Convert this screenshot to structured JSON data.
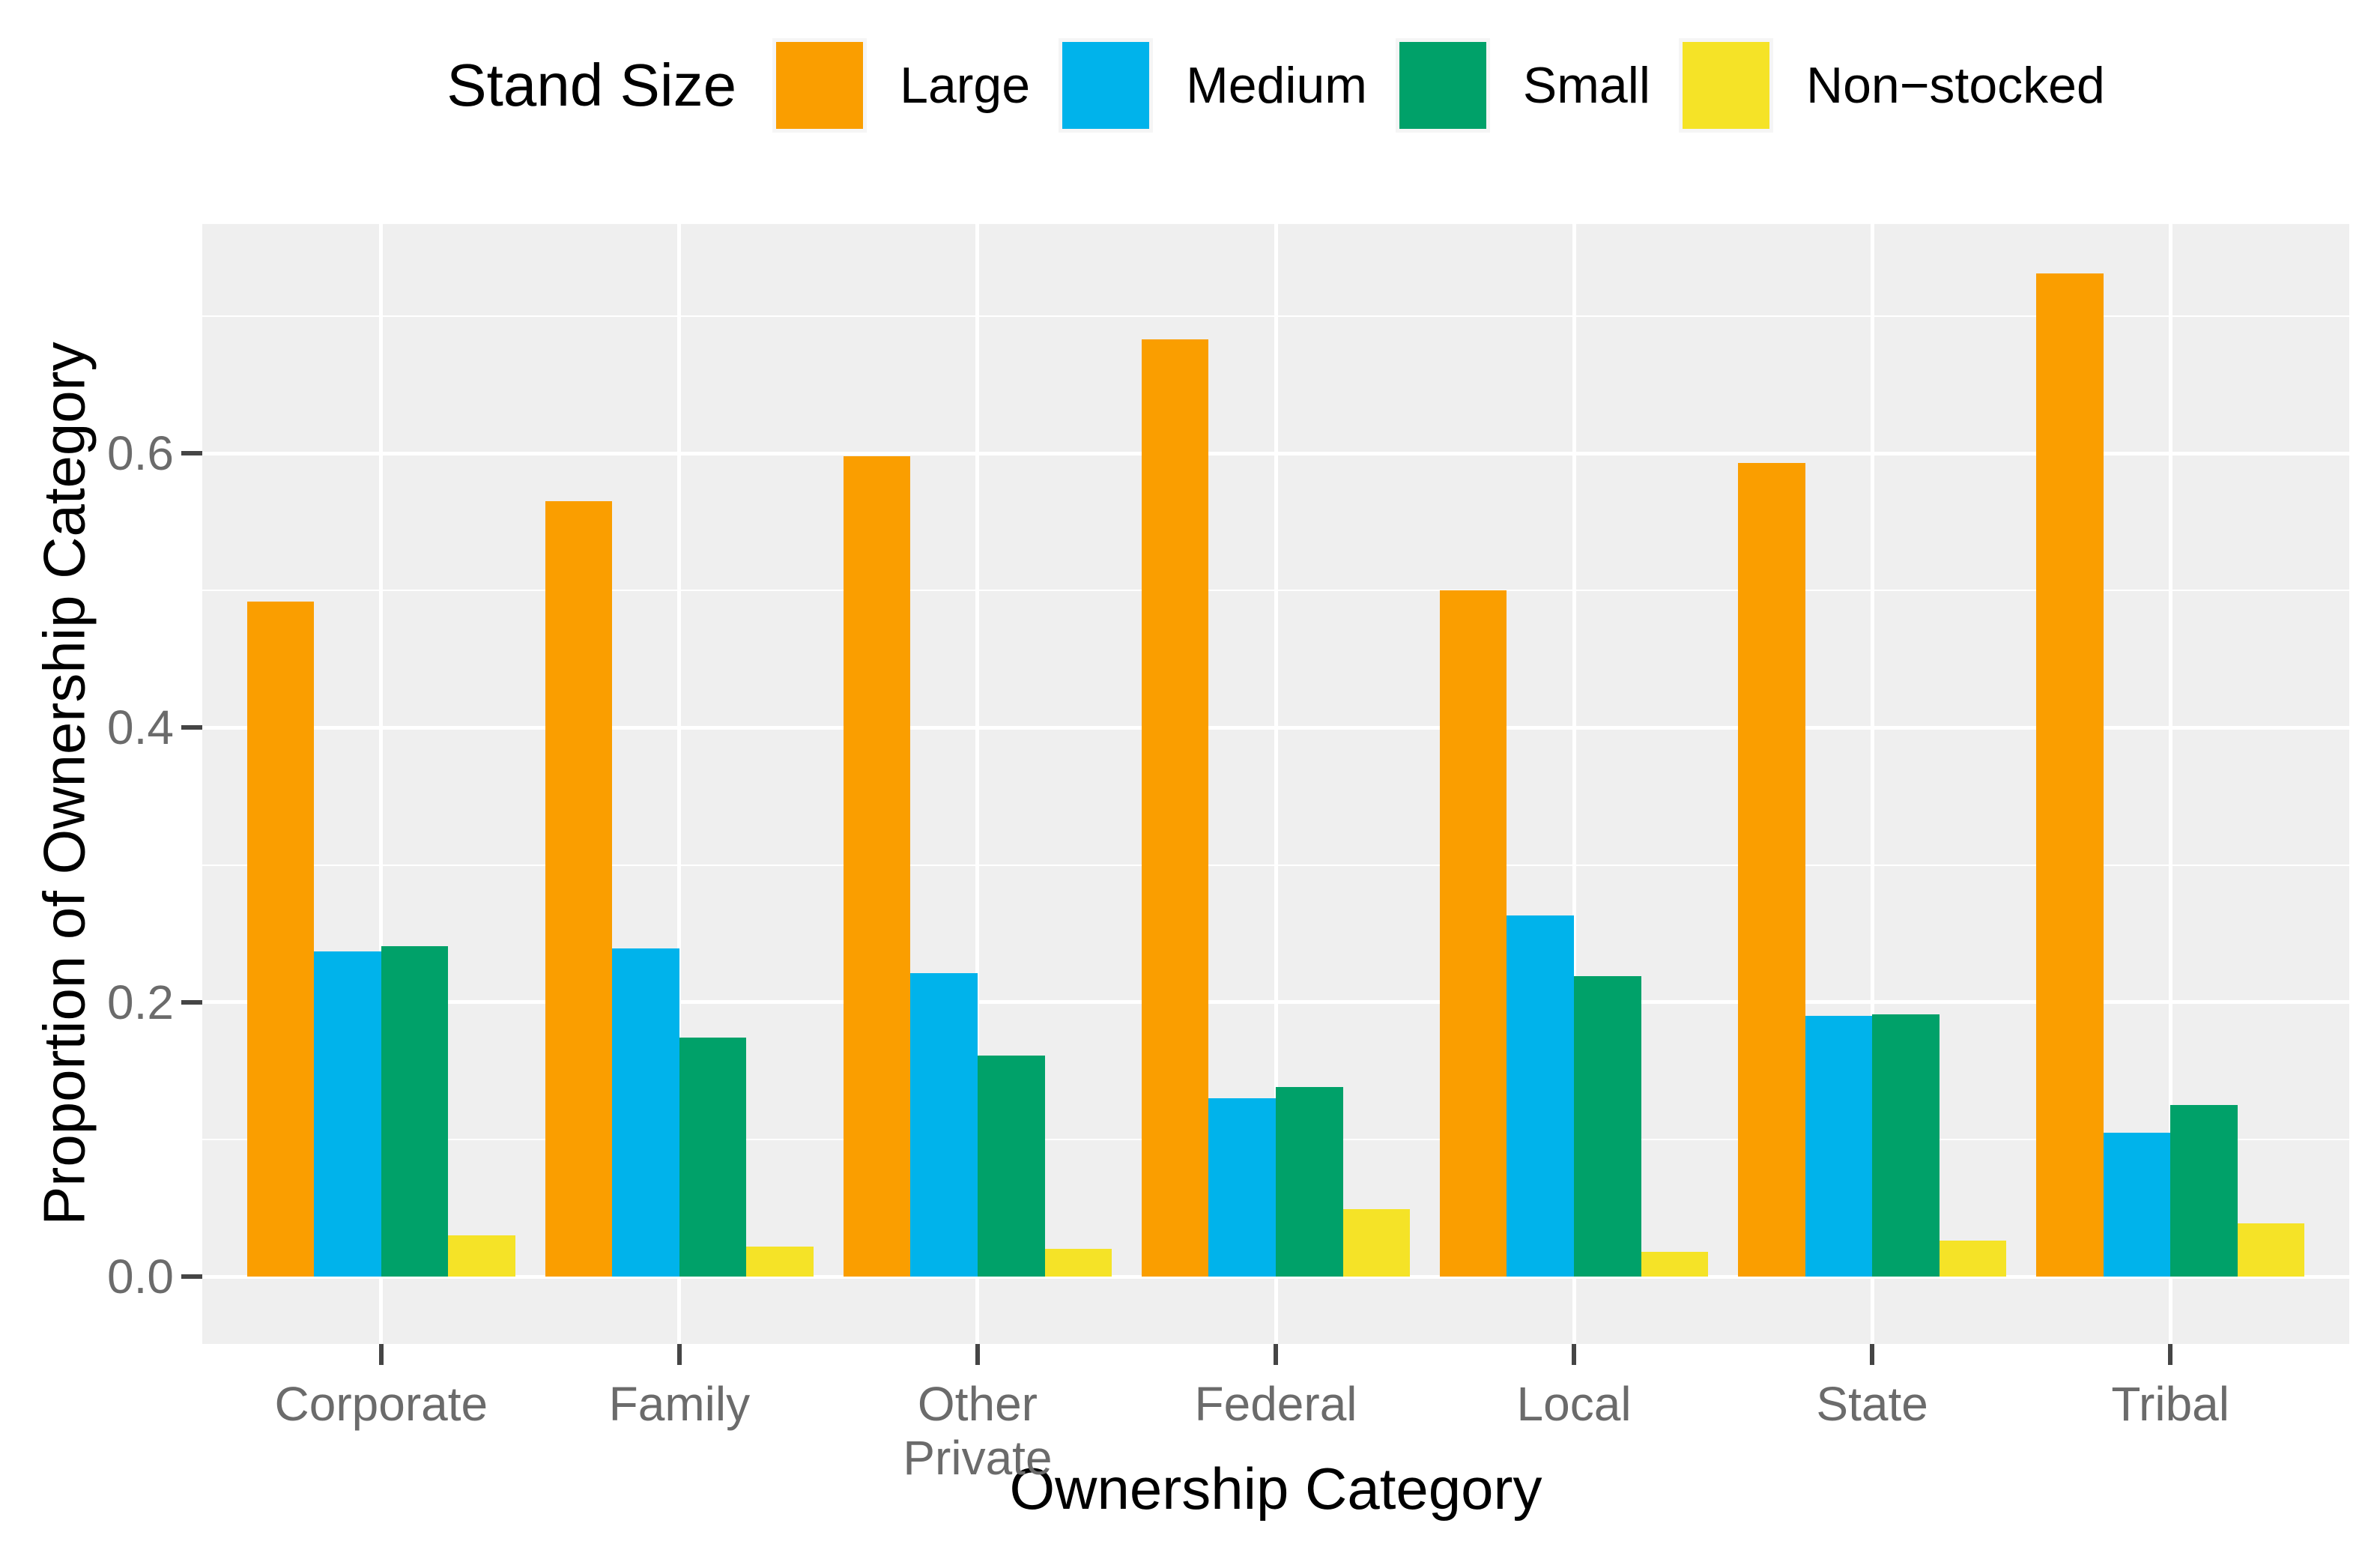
{
  "legend": {
    "title": "Stand Size",
    "key_background": "#F5F5F5"
  },
  "axes": {
    "y": {
      "title": "Proportion of Ownership Category",
      "tick_labels": [
        "0.0",
        "0.2",
        "0.4",
        "0.6"
      ],
      "tick_values": [
        0.0,
        0.2,
        0.4,
        0.6
      ],
      "minor_tick_values": [
        0.1,
        0.3,
        0.5,
        0.7
      ]
    },
    "x": {
      "title": "Ownership Category",
      "category_label_lines": [
        [
          "Corporate"
        ],
        [
          "Family"
        ],
        [
          "Other",
          "Private"
        ],
        [
          "Federal"
        ],
        [
          "Local"
        ],
        [
          "State"
        ],
        [
          "Tribal"
        ]
      ]
    }
  },
  "chart_data": {
    "type": "bar",
    "grouping": "dodged",
    "title": "",
    "xlabel": "Ownership Category",
    "ylabel": "Proportion of Ownership Category",
    "categories": [
      "Corporate",
      "Family",
      "Other Private",
      "Federal",
      "Local",
      "State",
      "Tribal"
    ],
    "series": [
      {
        "name": "Large",
        "color": "#FA9E00",
        "values": [
          0.492,
          0.565,
          0.598,
          0.683,
          0.5,
          0.593,
          0.731
        ]
      },
      {
        "name": "Medium",
        "color": "#00B3EB",
        "values": [
          0.237,
          0.239,
          0.221,
          0.13,
          0.263,
          0.19,
          0.105
        ]
      },
      {
        "name": "Small",
        "color": "#00A169",
        "values": [
          0.241,
          0.174,
          0.161,
          0.138,
          0.219,
          0.191,
          0.125
        ]
      },
      {
        "name": "Non−stocked",
        "color": "#F5E327",
        "values": [
          0.03,
          0.022,
          0.02,
          0.049,
          0.018,
          0.026,
          0.039
        ]
      }
    ],
    "ylim": [
      0,
      0.77
    ],
    "legend_position": "top",
    "legend_title": "Stand Size",
    "grid": true,
    "panel_background": "#EFEFEF",
    "gridline_color": "#FFFFFF"
  },
  "style": {
    "panel_background": "#EFEFEF",
    "gridline_color": "#FFFFFF",
    "tick_label_color": "#6B6B6B",
    "tick_mark_color": "#454545",
    "text_color": "#000000"
  }
}
